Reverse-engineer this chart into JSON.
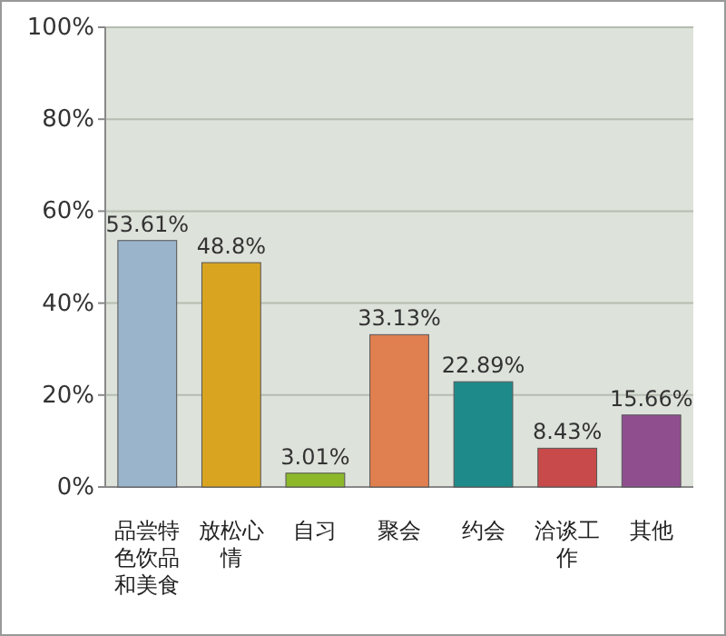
{
  "chart_data": {
    "type": "bar",
    "categories": [
      "品尝特色饮品和美食",
      "放松心情",
      "自习",
      "聚会",
      "约会",
      "洽谈工作",
      "其他"
    ],
    "values": [
      53.61,
      48.8,
      3.01,
      33.13,
      22.89,
      8.43,
      15.66
    ],
    "colors": [
      "#9ab4cc",
      "#d9a521",
      "#8cb82a",
      "#e07f4f",
      "#1f8a8a",
      "#c94a4a",
      "#8f4f8f"
    ],
    "value_labels": [
      "53.61%",
      "48.8%",
      "3.01%",
      "33.13%",
      "22.89%",
      "8.43%",
      "15.66%"
    ],
    "ylim": [
      0,
      100
    ],
    "yticks": [
      {
        "value": 0,
        "label": "0%"
      },
      {
        "value": 20,
        "label": "20%"
      },
      {
        "value": 40,
        "label": "40%"
      },
      {
        "value": 60,
        "label": "60%"
      },
      {
        "value": 80,
        "label": "80%"
      },
      {
        "value": 100,
        "label": "100%"
      }
    ],
    "grid": "y"
  }
}
